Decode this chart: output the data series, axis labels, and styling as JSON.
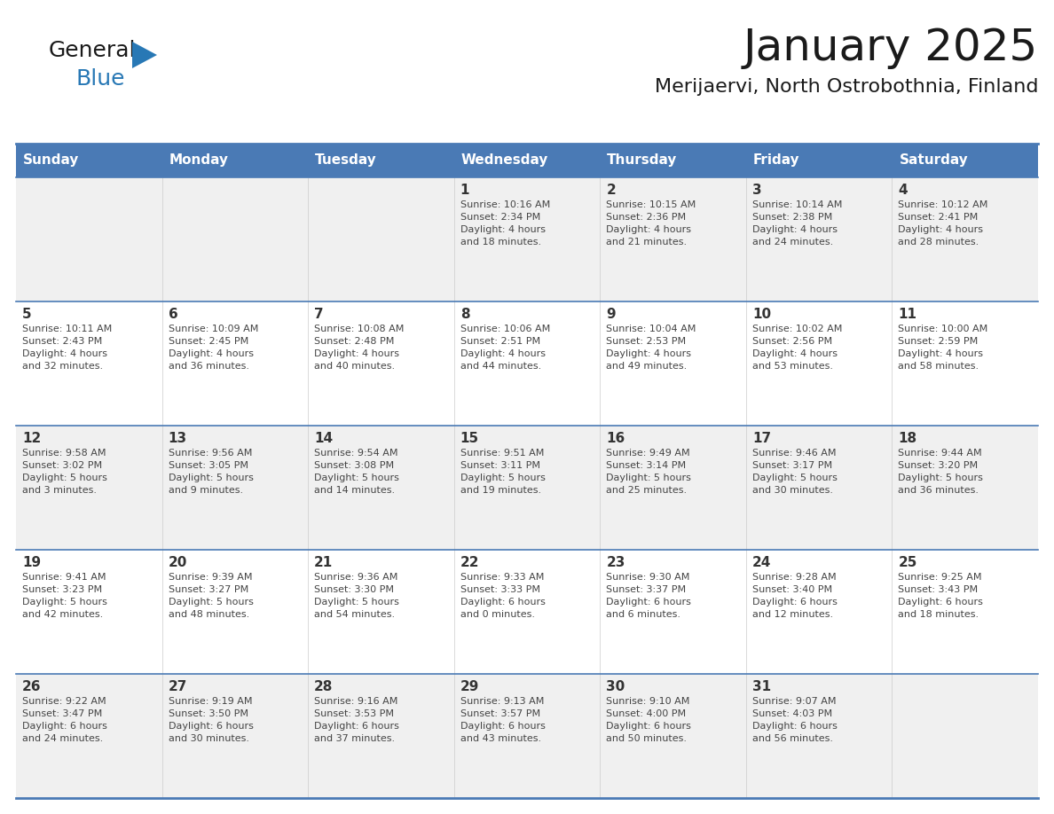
{
  "title": "January 2025",
  "subtitle": "Merijaervi, North Ostrobothnia, Finland",
  "days_of_week": [
    "Sunday",
    "Monday",
    "Tuesday",
    "Wednesday",
    "Thursday",
    "Friday",
    "Saturday"
  ],
  "header_bg": "#4a7ab5",
  "header_text": "#ffffff",
  "cell_bg_odd": "#f0f0f0",
  "cell_bg_even": "#ffffff",
  "cell_border": "#4a7ab5",
  "day_number_color": "#333333",
  "text_color": "#444444",
  "title_color": "#1a1a1a",
  "subtitle_color": "#1a1a1a",
  "general_color": "#1a1a1a",
  "blue_color": "#2878b5",
  "weeks": [
    {
      "days": [
        {
          "date": null,
          "info": null
        },
        {
          "date": null,
          "info": null
        },
        {
          "date": null,
          "info": null
        },
        {
          "date": "1",
          "info": "Sunrise: 10:16 AM\nSunset: 2:34 PM\nDaylight: 4 hours\nand 18 minutes."
        },
        {
          "date": "2",
          "info": "Sunrise: 10:15 AM\nSunset: 2:36 PM\nDaylight: 4 hours\nand 21 minutes."
        },
        {
          "date": "3",
          "info": "Sunrise: 10:14 AM\nSunset: 2:38 PM\nDaylight: 4 hours\nand 24 minutes."
        },
        {
          "date": "4",
          "info": "Sunrise: 10:12 AM\nSunset: 2:41 PM\nDaylight: 4 hours\nand 28 minutes."
        }
      ]
    },
    {
      "days": [
        {
          "date": "5",
          "info": "Sunrise: 10:11 AM\nSunset: 2:43 PM\nDaylight: 4 hours\nand 32 minutes."
        },
        {
          "date": "6",
          "info": "Sunrise: 10:09 AM\nSunset: 2:45 PM\nDaylight: 4 hours\nand 36 minutes."
        },
        {
          "date": "7",
          "info": "Sunrise: 10:08 AM\nSunset: 2:48 PM\nDaylight: 4 hours\nand 40 minutes."
        },
        {
          "date": "8",
          "info": "Sunrise: 10:06 AM\nSunset: 2:51 PM\nDaylight: 4 hours\nand 44 minutes."
        },
        {
          "date": "9",
          "info": "Sunrise: 10:04 AM\nSunset: 2:53 PM\nDaylight: 4 hours\nand 49 minutes."
        },
        {
          "date": "10",
          "info": "Sunrise: 10:02 AM\nSunset: 2:56 PM\nDaylight: 4 hours\nand 53 minutes."
        },
        {
          "date": "11",
          "info": "Sunrise: 10:00 AM\nSunset: 2:59 PM\nDaylight: 4 hours\nand 58 minutes."
        }
      ]
    },
    {
      "days": [
        {
          "date": "12",
          "info": "Sunrise: 9:58 AM\nSunset: 3:02 PM\nDaylight: 5 hours\nand 3 minutes."
        },
        {
          "date": "13",
          "info": "Sunrise: 9:56 AM\nSunset: 3:05 PM\nDaylight: 5 hours\nand 9 minutes."
        },
        {
          "date": "14",
          "info": "Sunrise: 9:54 AM\nSunset: 3:08 PM\nDaylight: 5 hours\nand 14 minutes."
        },
        {
          "date": "15",
          "info": "Sunrise: 9:51 AM\nSunset: 3:11 PM\nDaylight: 5 hours\nand 19 minutes."
        },
        {
          "date": "16",
          "info": "Sunrise: 9:49 AM\nSunset: 3:14 PM\nDaylight: 5 hours\nand 25 minutes."
        },
        {
          "date": "17",
          "info": "Sunrise: 9:46 AM\nSunset: 3:17 PM\nDaylight: 5 hours\nand 30 minutes."
        },
        {
          "date": "18",
          "info": "Sunrise: 9:44 AM\nSunset: 3:20 PM\nDaylight: 5 hours\nand 36 minutes."
        }
      ]
    },
    {
      "days": [
        {
          "date": "19",
          "info": "Sunrise: 9:41 AM\nSunset: 3:23 PM\nDaylight: 5 hours\nand 42 minutes."
        },
        {
          "date": "20",
          "info": "Sunrise: 9:39 AM\nSunset: 3:27 PM\nDaylight: 5 hours\nand 48 minutes."
        },
        {
          "date": "21",
          "info": "Sunrise: 9:36 AM\nSunset: 3:30 PM\nDaylight: 5 hours\nand 54 minutes."
        },
        {
          "date": "22",
          "info": "Sunrise: 9:33 AM\nSunset: 3:33 PM\nDaylight: 6 hours\nand 0 minutes."
        },
        {
          "date": "23",
          "info": "Sunrise: 9:30 AM\nSunset: 3:37 PM\nDaylight: 6 hours\nand 6 minutes."
        },
        {
          "date": "24",
          "info": "Sunrise: 9:28 AM\nSunset: 3:40 PM\nDaylight: 6 hours\nand 12 minutes."
        },
        {
          "date": "25",
          "info": "Sunrise: 9:25 AM\nSunset: 3:43 PM\nDaylight: 6 hours\nand 18 minutes."
        }
      ]
    },
    {
      "days": [
        {
          "date": "26",
          "info": "Sunrise: 9:22 AM\nSunset: 3:47 PM\nDaylight: 6 hours\nand 24 minutes."
        },
        {
          "date": "27",
          "info": "Sunrise: 9:19 AM\nSunset: 3:50 PM\nDaylight: 6 hours\nand 30 minutes."
        },
        {
          "date": "28",
          "info": "Sunrise: 9:16 AM\nSunset: 3:53 PM\nDaylight: 6 hours\nand 37 minutes."
        },
        {
          "date": "29",
          "info": "Sunrise: 9:13 AM\nSunset: 3:57 PM\nDaylight: 6 hours\nand 43 minutes."
        },
        {
          "date": "30",
          "info": "Sunrise: 9:10 AM\nSunset: 4:00 PM\nDaylight: 6 hours\nand 50 minutes."
        },
        {
          "date": "31",
          "info": "Sunrise: 9:07 AM\nSunset: 4:03 PM\nDaylight: 6 hours\nand 56 minutes."
        },
        {
          "date": null,
          "info": null
        }
      ]
    }
  ]
}
